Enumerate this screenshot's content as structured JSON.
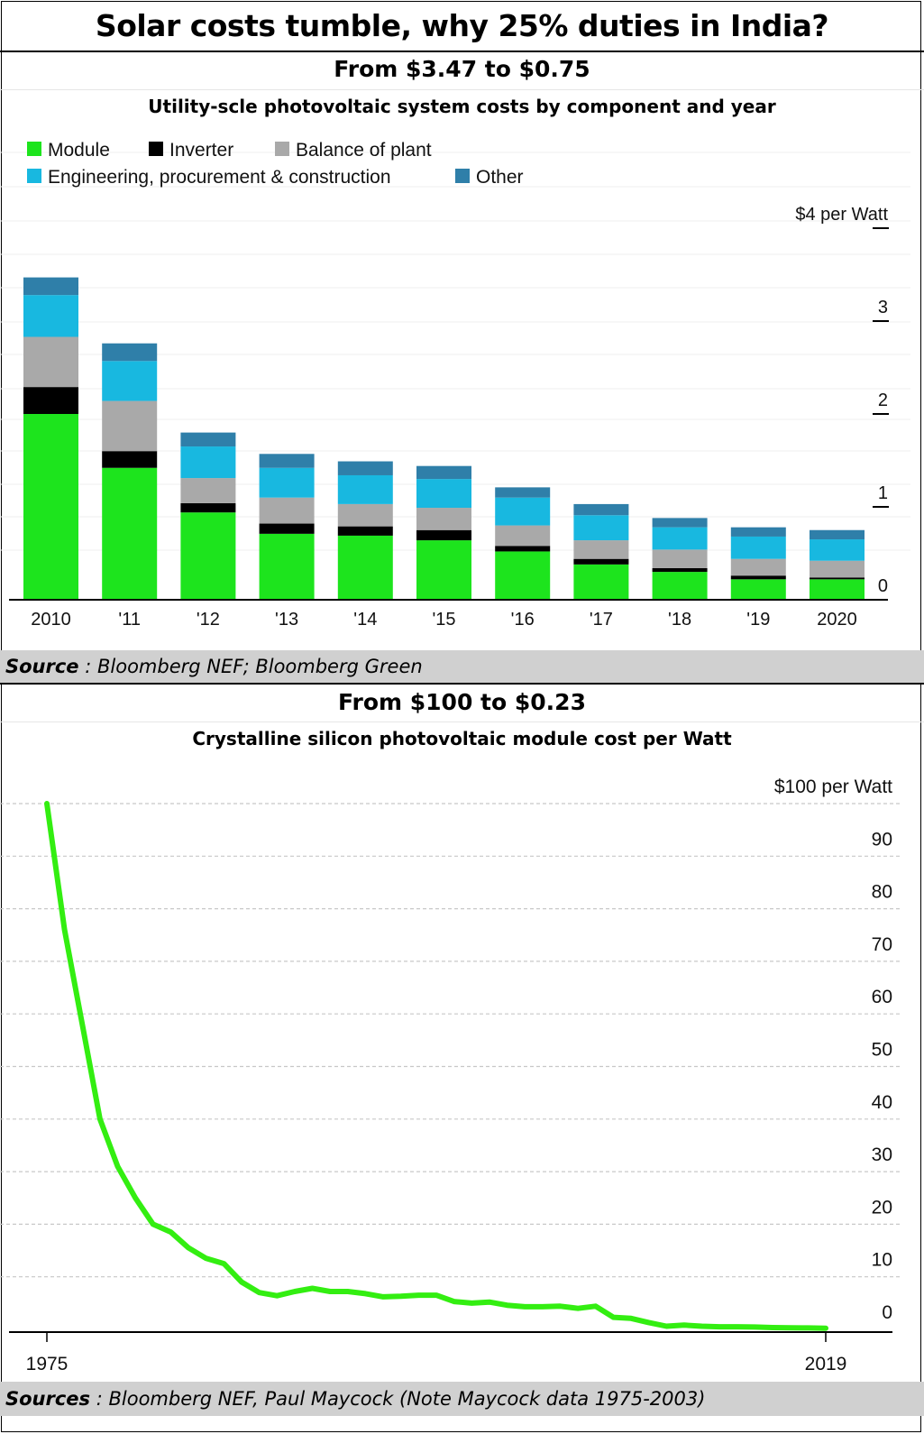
{
  "title": "Solar costs tumble, why 25% duties in India?",
  "panel1": {
    "heading": "From $3.47 to $0.75",
    "subheading": "Utility-scle photovoltaic system costs by component and year",
    "source_label": "Source",
    "source_text": " : Bloomberg NEF; Bloomberg Green"
  },
  "panel2": {
    "heading": "From $100 to $0.23",
    "subheading": "Crystalline silicon photovoltaic module cost per Watt",
    "source_label": "Sources",
    "source_text": " : Bloomberg NEF, Paul Maycock (Note Maycock data 1975-2003)"
  },
  "chart_data": [
    {
      "type": "bar",
      "stacked": true,
      "categories": [
        "2010",
        "'11",
        "'12",
        "'13",
        "'14",
        "'15",
        "'16",
        "'17",
        "'18",
        "'19",
        "2020"
      ],
      "series": [
        {
          "name": "Module",
          "color": "#1de41d",
          "values": [
            2.0,
            1.42,
            0.94,
            0.71,
            0.69,
            0.64,
            0.52,
            0.38,
            0.3,
            0.22,
            0.22
          ]
        },
        {
          "name": "Inverter",
          "color": "#000000",
          "values": [
            0.29,
            0.18,
            0.1,
            0.11,
            0.1,
            0.11,
            0.06,
            0.06,
            0.04,
            0.04,
            0.02
          ]
        },
        {
          "name": "Balance of plant",
          "color": "#a9a9a9",
          "values": [
            0.54,
            0.54,
            0.27,
            0.28,
            0.24,
            0.24,
            0.22,
            0.2,
            0.2,
            0.18,
            0.18
          ]
        },
        {
          "name": "Engineering, procurement & construction",
          "color": "#18b8e0",
          "values": [
            0.45,
            0.43,
            0.34,
            0.32,
            0.31,
            0.31,
            0.3,
            0.27,
            0.24,
            0.24,
            0.23
          ]
        },
        {
          "name": "Other",
          "color": "#2f7fa9",
          "values": [
            0.19,
            0.19,
            0.15,
            0.15,
            0.15,
            0.14,
            0.11,
            0.12,
            0.1,
            0.1,
            0.1
          ]
        }
      ],
      "ylim": [
        0,
        4
      ],
      "yticks": [
        {
          "value": 4,
          "label": "$4 per Watt"
        },
        {
          "value": 3,
          "label": "3"
        },
        {
          "value": 2,
          "label": "2"
        },
        {
          "value": 1,
          "label": "1"
        },
        {
          "value": 0,
          "label": "0"
        }
      ],
      "legend_placement": "top-left",
      "grid": false
    },
    {
      "type": "line",
      "x_labels": [
        "1975",
        "2019"
      ],
      "series": [
        {
          "color": "#33ee11",
          "x": [
            1975,
            1976,
            1977,
            1978,
            1979,
            1980,
            1981,
            1982,
            1983,
            1984,
            1985,
            1986,
            1987,
            1988,
            1989,
            1990,
            1991,
            1992,
            1993,
            1994,
            1995,
            1996,
            1997,
            1998,
            1999,
            2000,
            2001,
            2002,
            2003,
            2004,
            2005,
            2006,
            2007,
            2008,
            2009,
            2010,
            2011,
            2012,
            2013,
            2014,
            2015,
            2016,
            2017,
            2018,
            2019
          ],
          "y": [
            100,
            76,
            58,
            40,
            31,
            25,
            20,
            18.5,
            15.5,
            13.5,
            12.5,
            9,
            7,
            6.4,
            7.2,
            7.8,
            7.2,
            7.2,
            6.8,
            6.2,
            6.3,
            6.5,
            6.5,
            5.3,
            5,
            5.2,
            4.6,
            4.3,
            4.3,
            4.4,
            4,
            4.4,
            2.3,
            2.1,
            1.3,
            0.6,
            0.8,
            0.6,
            0.5,
            0.5,
            0.45,
            0.35,
            0.3,
            0.28,
            0.23
          ]
        }
      ],
      "ylim": [
        0,
        100
      ],
      "yticks": [
        {
          "value": 100,
          "label": "$100 per Watt"
        },
        {
          "value": 90,
          "label": "90"
        },
        {
          "value": 80,
          "label": "80"
        },
        {
          "value": 70,
          "label": "70"
        },
        {
          "value": 60,
          "label": "60"
        },
        {
          "value": 50,
          "label": "50"
        },
        {
          "value": 40,
          "label": "40"
        },
        {
          "value": 30,
          "label": "30"
        },
        {
          "value": 20,
          "label": "20"
        },
        {
          "value": 10,
          "label": "10"
        },
        {
          "value": 0,
          "label": "0"
        }
      ],
      "grid": true
    }
  ]
}
